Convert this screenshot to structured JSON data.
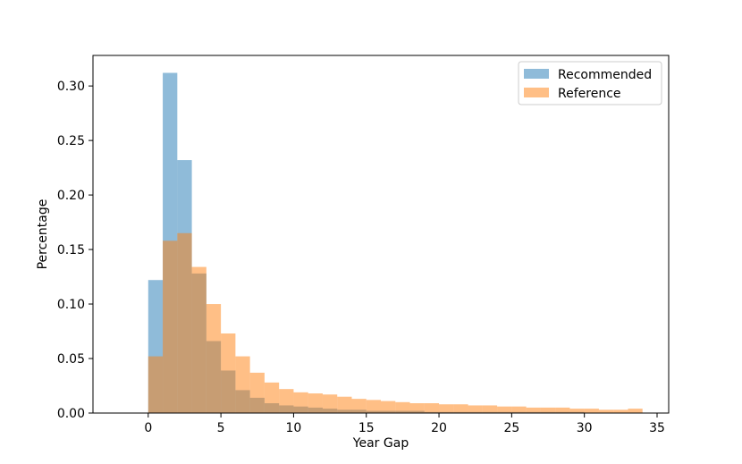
{
  "chart_data": {
    "type": "histogram",
    "title": "",
    "xlabel": "Year Gap",
    "ylabel": "Percentage",
    "xlim": [
      -3.8,
      35.8
    ],
    "ylim": [
      0,
      0.328
    ],
    "xticks": [
      0,
      5,
      10,
      15,
      20,
      25,
      30,
      35
    ],
    "yticks": [
      0.0,
      0.05,
      0.1,
      0.15,
      0.2,
      0.25,
      0.3
    ],
    "ytick_labels": [
      "0.00",
      "0.05",
      "0.10",
      "0.15",
      "0.20",
      "0.25",
      "0.30"
    ],
    "grid": false,
    "legend_position": "top-right",
    "bin_edges": [
      0,
      1,
      2,
      3,
      4,
      5,
      6,
      7,
      8,
      9,
      10,
      11,
      12,
      13,
      14,
      15,
      16,
      17,
      18,
      19,
      20,
      21,
      22,
      23,
      24,
      25,
      26,
      27,
      28,
      29,
      30,
      31,
      32,
      33,
      34
    ],
    "series": [
      {
        "name": "Recommended",
        "color": "#1f77b4",
        "alpha": 0.5,
        "values": [
          0.122,
          0.312,
          0.232,
          0.128,
          0.066,
          0.039,
          0.021,
          0.014,
          0.009,
          0.007,
          0.006,
          0.005,
          0.004,
          0.003,
          0.003,
          0.002,
          0.002,
          0.002,
          0.002,
          0.001,
          0.001,
          0.001,
          0.001,
          0.001,
          0.001,
          0.001,
          0.001,
          0.001,
          0.001,
          0.001,
          0.0,
          0.0,
          0.0,
          0.0
        ]
      },
      {
        "name": "Reference",
        "color": "#ff7f0e",
        "alpha": 0.5,
        "values": [
          0.052,
          0.158,
          0.165,
          0.134,
          0.1,
          0.073,
          0.052,
          0.037,
          0.028,
          0.022,
          0.019,
          0.018,
          0.017,
          0.015,
          0.013,
          0.012,
          0.011,
          0.01,
          0.009,
          0.009,
          0.008,
          0.008,
          0.007,
          0.007,
          0.006,
          0.006,
          0.005,
          0.005,
          0.005,
          0.004,
          0.004,
          0.003,
          0.003,
          0.004
        ]
      }
    ]
  }
}
